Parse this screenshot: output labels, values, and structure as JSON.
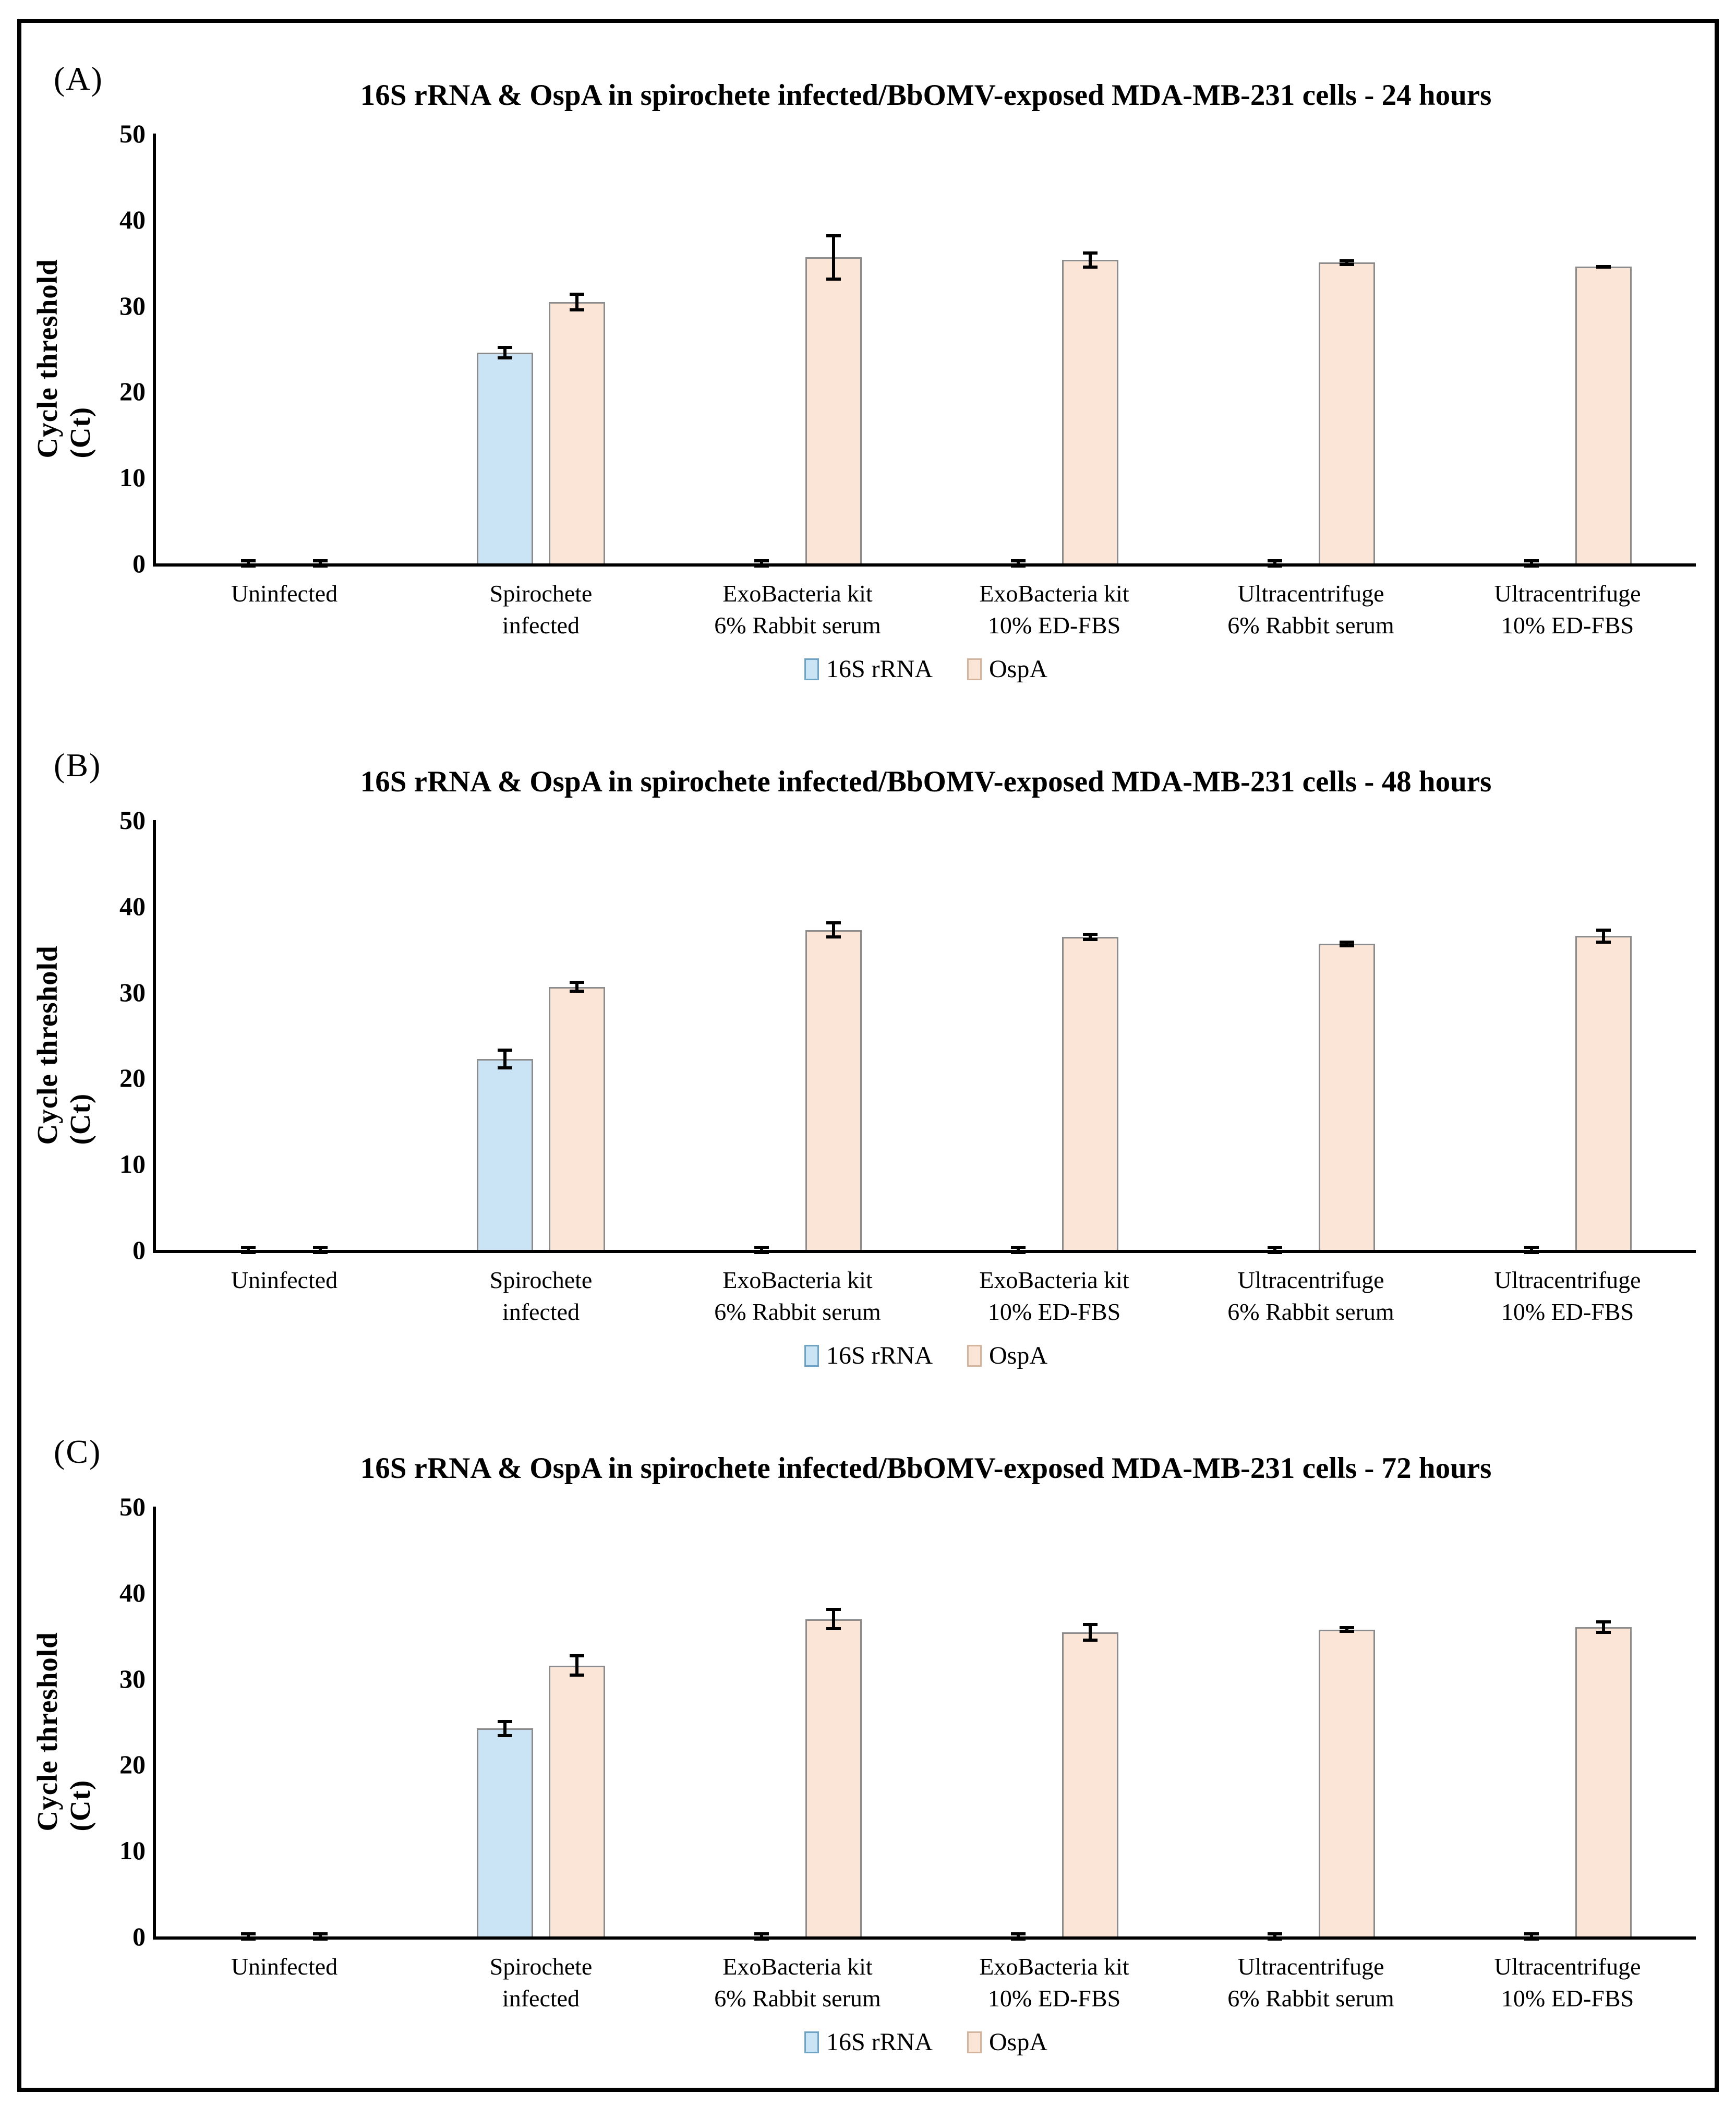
{
  "figure": {
    "type": "three-panel bar chart figure",
    "background": "#ffffff",
    "frame_border_color": "#000000"
  },
  "style": {
    "series_colors": [
      {
        "name": "16S rRNA",
        "fill": "#CBE4F5",
        "border": "#8C8C8C",
        "legend_border": "#6FA3C4"
      },
      {
        "name": "OspA",
        "fill": "#FBE5D6",
        "border": "#8C8C8C",
        "legend_border": "#D3B49C"
      }
    ],
    "axis_color": "#000000",
    "error_bar_color": "#000000"
  },
  "chart_data": [
    {
      "type": "bar",
      "panel_label": "(A)",
      "title": "16S rRNA & OspA in spirochete infected/BbOMV-exposed MDA-MB-231 cells - 24 hours",
      "ylabel": "Cycle threshold (Ct)",
      "xlabel": "",
      "ylim": [
        0,
        50
      ],
      "yticks": [
        0,
        10,
        20,
        30,
        40,
        50
      ],
      "grid": false,
      "legend_position": "bottom",
      "legend_entries": [
        "16S rRNA",
        "OspA"
      ],
      "categories": [
        "Uninfected",
        "Spirochete\ninfected",
        "ExoBacteria kit\n6% Rabbit serum",
        "ExoBacteria kit\n10% ED-FBS",
        "Ultracentrifuge\n6% Rabbit serum",
        "Ultracentrifuge\n10% ED-FBS"
      ],
      "series": [
        {
          "name": "16S rRNA",
          "values": [
            0,
            24.5,
            0,
            0,
            0,
            0
          ],
          "errors": [
            0.5,
            0.8,
            0.5,
            0.5,
            0.5,
            0.5
          ]
        },
        {
          "name": "OspA",
          "values": [
            0,
            30.4,
            35.6,
            35.3,
            35.0,
            34.5
          ],
          "errors": [
            0.5,
            1.1,
            2.7,
            1.0,
            0.4,
            0.2
          ]
        }
      ]
    },
    {
      "type": "bar",
      "panel_label": "(B)",
      "title": "16S rRNA & OspA in spirochete infected/BbOMV-exposed MDA-MB-231 cells - 48 hours",
      "ylabel": "Cycle threshold (Ct)",
      "xlabel": "",
      "ylim": [
        0,
        50
      ],
      "yticks": [
        0,
        10,
        20,
        30,
        40,
        50
      ],
      "grid": false,
      "legend_position": "bottom",
      "legend_entries": [
        "16S rRNA",
        "OspA"
      ],
      "categories": [
        "Uninfected",
        "Spirochete\ninfected",
        "ExoBacteria kit\n6% Rabbit serum",
        "ExoBacteria kit\n10% ED-FBS",
        "Ultracentrifuge\n6% Rabbit serum",
        "Ultracentrifuge\n10% ED-FBS"
      ],
      "series": [
        {
          "name": "16S rRNA",
          "values": [
            0,
            22.2,
            0,
            0,
            0,
            0
          ],
          "errors": [
            0.5,
            1.2,
            0.5,
            0.5,
            0.5,
            0.5
          ]
        },
        {
          "name": "OspA",
          "values": [
            0,
            30.6,
            37.2,
            36.4,
            35.6,
            36.5
          ],
          "errors": [
            0.5,
            0.7,
            1.0,
            0.5,
            0.4,
            0.9
          ]
        }
      ]
    },
    {
      "type": "bar",
      "panel_label": "(C)",
      "title": "16S rRNA & OspA in spirochete infected/BbOMV-exposed MDA-MB-231 cells - 72 hours",
      "ylabel": "Cycle threshold (Ct)",
      "xlabel": "",
      "ylim": [
        0,
        50
      ],
      "yticks": [
        0,
        10,
        20,
        30,
        40,
        50
      ],
      "grid": false,
      "legend_position": "bottom",
      "legend_entries": [
        "16S rRNA",
        "OspA"
      ],
      "categories": [
        "Uninfected",
        "Spirochete\ninfected",
        "ExoBacteria kit\n6% Rabbit serum",
        "ExoBacteria kit\n10% ED-FBS",
        "Ultracentrifuge\n6% Rabbit serum",
        "Ultracentrifuge\n10% ED-FBS"
      ],
      "series": [
        {
          "name": "16S rRNA",
          "values": [
            0,
            24.2,
            0,
            0,
            0,
            0
          ],
          "errors": [
            0.5,
            1.0,
            0.5,
            0.5,
            0.5,
            0.5
          ]
        },
        {
          "name": "OspA",
          "values": [
            0,
            31.5,
            36.9,
            35.4,
            35.7,
            36.0
          ],
          "errors": [
            0.5,
            1.3,
            1.3,
            1.1,
            0.4,
            0.8
          ]
        }
      ]
    }
  ]
}
